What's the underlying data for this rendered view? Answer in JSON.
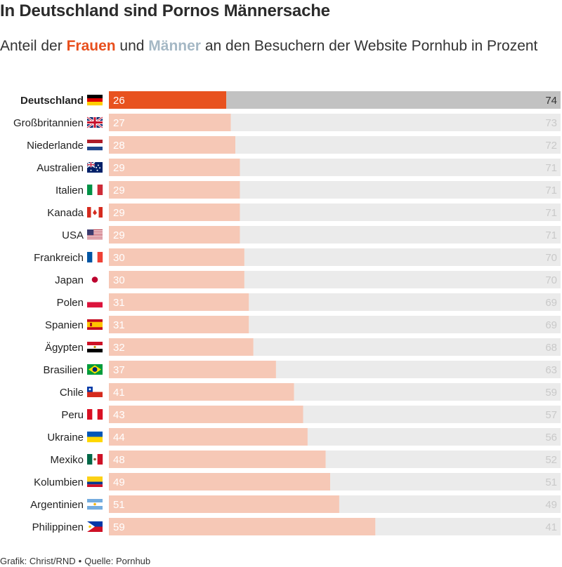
{
  "header": {
    "title": "In Deutschland sind Pornos Männersache",
    "subtitle_pre": "Anteil der ",
    "subtitle_women": "Frauen",
    "subtitle_mid": " und ",
    "subtitle_men": "Männer",
    "subtitle_post": " an den Besuchern der Website Pornhub in Prozent"
  },
  "footer": {
    "credit": "Grafik: Christ/RND",
    "separator": "•",
    "source": "Quelle: Pornhub"
  },
  "colors": {
    "women_highlight": "#e8521f",
    "women": "#f6c8b6",
    "men_highlight": "#c2c2c2",
    "men": "#ebebeb"
  },
  "chart_data": {
    "type": "bar",
    "stacked": true,
    "orientation": "horizontal",
    "categories": [
      "Deutschland",
      "Großbritannien",
      "Niederlande",
      "Australien",
      "Italien",
      "Kanada",
      "USA",
      "Frankreich",
      "Japan",
      "Polen",
      "Spanien",
      "Ägypten",
      "Brasilien",
      "Chile",
      "Peru",
      "Ukraine",
      "Mexiko",
      "Kolumbien",
      "Argentinien",
      "Philippinen"
    ],
    "flags": [
      "de",
      "gb",
      "nl",
      "au",
      "it",
      "ca",
      "us",
      "fr",
      "jp",
      "pl",
      "es",
      "eg",
      "br",
      "cl",
      "pe",
      "ua",
      "mx",
      "co",
      "ar",
      "ph"
    ],
    "highlight_index": 0,
    "series": [
      {
        "name": "Frauen",
        "values": [
          26,
          27,
          28,
          29,
          29,
          29,
          29,
          30,
          30,
          31,
          31,
          32,
          37,
          41,
          43,
          44,
          48,
          49,
          51,
          59
        ]
      },
      {
        "name": "Männer",
        "values": [
          74,
          73,
          72,
          71,
          71,
          71,
          71,
          70,
          70,
          69,
          69,
          68,
          63,
          59,
          57,
          56,
          52,
          51,
          49,
          41
        ]
      }
    ],
    "xlim": [
      0,
      100
    ]
  }
}
